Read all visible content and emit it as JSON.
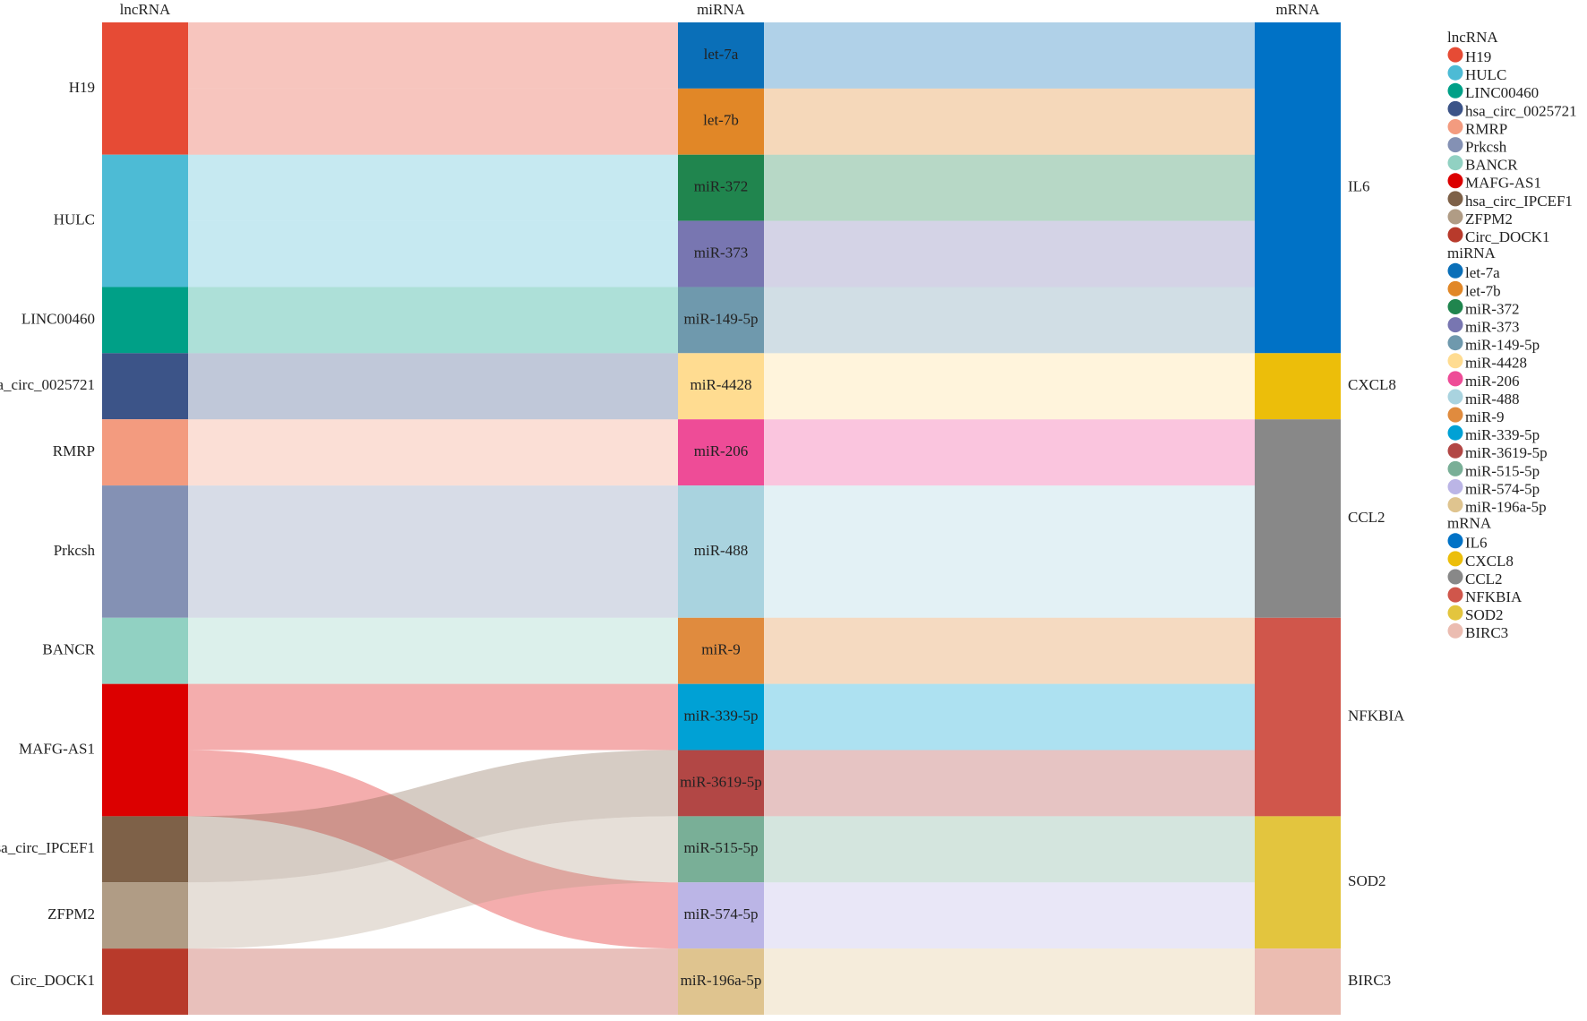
{
  "chart_data": {
    "type": "sankey",
    "columns": [
      {
        "name": "lncRNA",
        "nodes": [
          {
            "name": "H19",
            "color": "#e64b35"
          },
          {
            "name": "HULC",
            "color": "#4dbbd5"
          },
          {
            "name": "LINC00460",
            "color": "#00a087"
          },
          {
            "name": "hsa_circ_0025721",
            "color": "#3c5488"
          },
          {
            "name": "RMRP",
            "color": "#f39b7f"
          },
          {
            "name": "Prkcsh",
            "color": "#8491b4"
          },
          {
            "name": "BANCR",
            "color": "#91d1c2"
          },
          {
            "name": "MAFG-AS1",
            "color": "#dc0000"
          },
          {
            "name": "hsa_circ_IPCEF1",
            "color": "#7e6148"
          },
          {
            "name": "ZFPM2",
            "color": "#b09c85"
          },
          {
            "name": "Circ_DOCK1",
            "color": "#b83a2b"
          }
        ]
      },
      {
        "name": "miRNA",
        "nodes": [
          {
            "name": "let-7a",
            "color": "#0a6fb8"
          },
          {
            "name": "let-7b",
            "color": "#e18727"
          },
          {
            "name": "miR-372",
            "color": "#20854e"
          },
          {
            "name": "miR-373",
            "color": "#7876b1"
          },
          {
            "name": "miR-149-5p",
            "color": "#6f99ad"
          },
          {
            "name": "miR-4428",
            "color": "#ffdc91"
          },
          {
            "name": "miR-206",
            "color": "#ee4c97"
          },
          {
            "name": "miR-488",
            "color": "#a9d3df"
          },
          {
            "name": "miR-9",
            "color": "#e08b3e"
          },
          {
            "name": "miR-339-5p",
            "color": "#00a1d5"
          },
          {
            "name": "miR-3619-5p",
            "color": "#b24745"
          },
          {
            "name": "miR-515-5p",
            "color": "#79af97"
          },
          {
            "name": "miR-574-5p",
            "color": "#bbb5e6"
          },
          {
            "name": "miR-196a-5p",
            "color": "#dfc48f"
          }
        ]
      },
      {
        "name": "mRNA",
        "nodes": [
          {
            "name": "IL6",
            "color": "#0072c6"
          },
          {
            "name": "CXCL8",
            "color": "#ecbe0a"
          },
          {
            "name": "CCL2",
            "color": "#888888"
          },
          {
            "name": "NFKBIA",
            "color": "#d0564b"
          },
          {
            "name": "SOD2",
            "color": "#e3c53e"
          },
          {
            "name": "BIRC3",
            "color": "#ebbcb1"
          }
        ]
      }
    ],
    "links": [
      {
        "source": "H19",
        "target": "let-7a",
        "value": 1
      },
      {
        "source": "H19",
        "target": "let-7b",
        "value": 1
      },
      {
        "source": "HULC",
        "target": "miR-372",
        "value": 1
      },
      {
        "source": "HULC",
        "target": "miR-373",
        "value": 1
      },
      {
        "source": "LINC00460",
        "target": "miR-149-5p",
        "value": 1
      },
      {
        "source": "hsa_circ_0025721",
        "target": "miR-4428",
        "value": 1
      },
      {
        "source": "RMRP",
        "target": "miR-206",
        "value": 1
      },
      {
        "source": "Prkcsh",
        "target": "miR-488",
        "value": 2
      },
      {
        "source": "BANCR",
        "target": "miR-9",
        "value": 1
      },
      {
        "source": "MAFG-AS1",
        "target": "miR-339-5p",
        "value": 1
      },
      {
        "source": "MAFG-AS1",
        "target": "miR-574-5p",
        "value": 1
      },
      {
        "source": "hsa_circ_IPCEF1",
        "target": "miR-3619-5p",
        "value": 1
      },
      {
        "source": "ZFPM2",
        "target": "miR-515-5p",
        "value": 1
      },
      {
        "source": "Circ_DOCK1",
        "target": "miR-196a-5p",
        "value": 1
      },
      {
        "source": "let-7a",
        "target": "IL6",
        "value": 1
      },
      {
        "source": "let-7b",
        "target": "IL6",
        "value": 1
      },
      {
        "source": "miR-372",
        "target": "IL6",
        "value": 1
      },
      {
        "source": "miR-373",
        "target": "IL6",
        "value": 1
      },
      {
        "source": "miR-149-5p",
        "target": "IL6",
        "value": 1
      },
      {
        "source": "miR-4428",
        "target": "CXCL8",
        "value": 1
      },
      {
        "source": "miR-206",
        "target": "CCL2",
        "value": 1
      },
      {
        "source": "miR-488",
        "target": "CCL2",
        "value": 2
      },
      {
        "source": "miR-9",
        "target": "NFKBIA",
        "value": 1
      },
      {
        "source": "miR-339-5p",
        "target": "NFKBIA",
        "value": 1
      },
      {
        "source": "miR-3619-5p",
        "target": "NFKBIA",
        "value": 1
      },
      {
        "source": "miR-515-5p",
        "target": "SOD2",
        "value": 1
      },
      {
        "source": "miR-574-5p",
        "target": "SOD2",
        "value": 1
      },
      {
        "source": "miR-196a-5p",
        "target": "BIRC3",
        "value": 1
      }
    ]
  }
}
